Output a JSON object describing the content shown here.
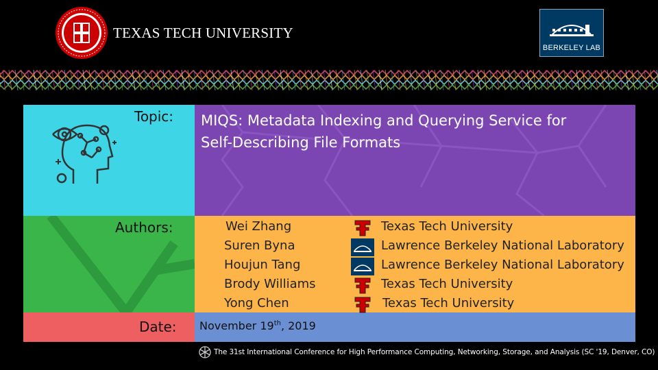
{
  "header": {
    "university_name": "TEXAS TECH UNIVERSITY",
    "lab_logo_text": "BERKELEY LAB"
  },
  "slide": {
    "topic_label": "Topic:",
    "title_line1": "MIQS: Metadata Indexing and Querying Service for",
    "title_line2": "Self-Describing File Formats",
    "authors_label": "Authors:",
    "authors": [
      {
        "name": "Wei Zhang",
        "affiliation": "Texas Tech University",
        "icon": "texas-tech-logo-icon"
      },
      {
        "name": "Suren Byna",
        "affiliation": "Lawrence Berkeley National Laboratory",
        "icon": "berkeley-lab-logo-icon"
      },
      {
        "name": "Houjun Tang",
        "affiliation": "Lawrence Berkeley National Laboratory",
        "icon": "berkeley-lab-logo-icon"
      },
      {
        "name": "Brody Williams",
        "affiliation": "Texas Tech University",
        "icon": "texas-tech-logo-icon"
      },
      {
        "name": "Yong Chen",
        "affiliation": "Texas Tech University",
        "icon": "texas-tech-logo-icon"
      }
    ],
    "date_label": "Date:",
    "date_prefix": "November 19",
    "date_suffix": "th",
    "date_year": ", 2019",
    "conference": "The 31st International Conference for High Performance Computing, Networking, Storage, and Analysis (SC '19, Denver, CO)"
  },
  "colors": {
    "topic": "#3ED6E7",
    "title_bg": "#7C46B2",
    "authors": "#39B54A",
    "authors_bg": "#FDB54A",
    "date": "#EE5F62",
    "date_bg": "#6B8FD3",
    "ttu_red": "#CC0000"
  }
}
